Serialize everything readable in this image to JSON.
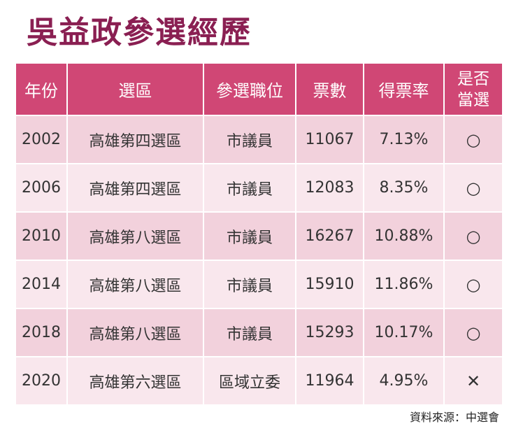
{
  "title": "吳益政參選經歷",
  "headers": [
    "年份",
    "選區",
    "參選職位",
    "票數",
    "得票率",
    "是否\n當選"
  ],
  "rows": [
    {
      "year": "2002",
      "district": "高雄第四選區",
      "position": "市議員",
      "votes": "11067",
      "rate": "7.13%",
      "elected": "○"
    },
    {
      "year": "2006",
      "district": "高雄第四選區",
      "position": "市議員",
      "votes": "12083",
      "rate": "8.35%",
      "elected": "○"
    },
    {
      "year": "2010",
      "district": "高雄第八選區",
      "position": "市議員",
      "votes": "16267",
      "rate": "10.88%",
      "elected": "○"
    },
    {
      "year": "2014",
      "district": "高雄第八選區",
      "position": "市議員",
      "votes": "15910",
      "rate": "11.86%",
      "elected": "○"
    },
    {
      "year": "2018",
      "district": "高雄第八選區",
      "position": "市議員",
      "votes": "15293",
      "rate": "10.17%",
      "elected": "○"
    },
    {
      "year": "2020",
      "district": "高雄第六選區",
      "position": "區域立委",
      "votes": "11964",
      "rate": "4.95%",
      "elected": "✕"
    }
  ],
  "source": "資料來源：中選會",
  "colors": {
    "title": "#8a1f52",
    "header_bg": "#d04775",
    "row_dark": "#f2d1dc",
    "row_light": "#f9e7ed"
  }
}
